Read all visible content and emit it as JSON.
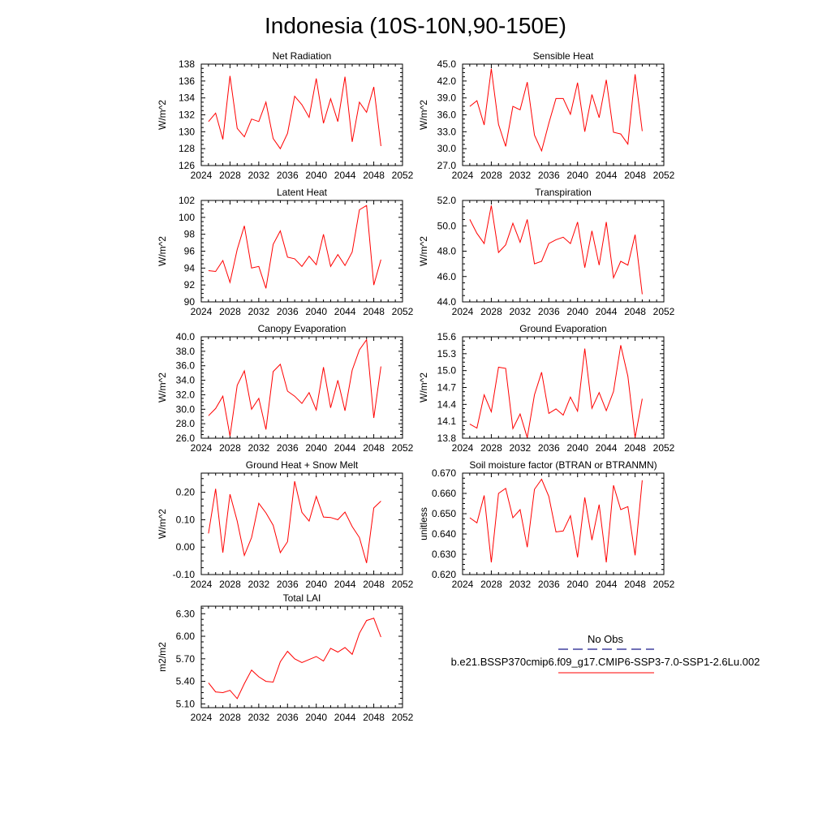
{
  "title": "Indonesia (10S-10N,90-150E)",
  "colors": {
    "model_line": "#ff0000",
    "obs_line": "#1a1a8c",
    "axis": "#000000"
  },
  "legend": {
    "obs_label": "No Obs",
    "model_label": "b.e21.BSSP370cmip6.f09_g17.CMIP6-SSP3-7.0-SSP1-2.6Lu.002"
  },
  "chart_data": [
    {
      "type": "line",
      "title": "Net Radiation",
      "ylabel": "W/m^2",
      "xlim": [
        2024,
        2052
      ],
      "x_ticks": [
        "2024",
        "2028",
        "2032",
        "2036",
        "2040",
        "2044",
        "2048",
        "2052"
      ],
      "ylim": [
        126,
        138
      ],
      "y_ticks": [
        "126",
        "128",
        "130",
        "132",
        "134",
        "136",
        "138"
      ],
      "x": [
        2025,
        2026,
        2027,
        2028,
        2029,
        2030,
        2031,
        2032,
        2033,
        2034,
        2035,
        2036,
        2037,
        2038,
        2039,
        2040,
        2041,
        2042,
        2043,
        2044,
        2045,
        2046,
        2047,
        2048,
        2049
      ],
      "values": [
        131.2,
        132.2,
        129.1,
        136.6,
        130.4,
        129.4,
        131.5,
        131.2,
        133.5,
        129.2,
        128.0,
        129.8,
        134.2,
        133.2,
        131.7,
        136.3,
        131.0,
        133.9,
        131.2,
        136.5,
        128.8,
        133.5,
        132.3,
        135.3,
        128.3
      ]
    },
    {
      "type": "line",
      "title": "Sensible Heat",
      "ylabel": "W/m^2",
      "xlim": [
        2024,
        2052
      ],
      "x_ticks": [
        "2024",
        "2028",
        "2032",
        "2036",
        "2040",
        "2044",
        "2048",
        "2052"
      ],
      "ylim": [
        27.0,
        45.0
      ],
      "y_ticks": [
        "27.0",
        "30.0",
        "33.0",
        "36.0",
        "39.0",
        "42.0",
        "45.0"
      ],
      "x": [
        2025,
        2026,
        2027,
        2028,
        2029,
        2030,
        2031,
        2032,
        2033,
        2034,
        2035,
        2036,
        2037,
        2038,
        2039,
        2040,
        2041,
        2042,
        2043,
        2044,
        2045,
        2046,
        2047,
        2048,
        2049
      ],
      "values": [
        37.5,
        38.5,
        34.2,
        44.2,
        34.3,
        30.4,
        37.5,
        36.9,
        41.8,
        32.4,
        29.6,
        34.5,
        38.9,
        38.9,
        36.1,
        41.7,
        33.0,
        39.6,
        35.5,
        42.2,
        32.9,
        32.6,
        30.8,
        43.2,
        33.1
      ]
    },
    {
      "type": "line",
      "title": "Latent Heat",
      "ylabel": "W/m^2",
      "xlim": [
        2024,
        2052
      ],
      "x_ticks": [
        "2024",
        "2028",
        "2032",
        "2036",
        "2040",
        "2044",
        "2048",
        "2052"
      ],
      "ylim": [
        90,
        102
      ],
      "y_ticks": [
        "90",
        "92",
        "94",
        "96",
        "98",
        "100",
        "102"
      ],
      "x": [
        2025,
        2026,
        2027,
        2028,
        2029,
        2030,
        2031,
        2032,
        2033,
        2034,
        2035,
        2036,
        2037,
        2038,
        2039,
        2040,
        2041,
        2042,
        2043,
        2044,
        2045,
        2046,
        2047,
        2048,
        2049
      ],
      "values": [
        93.7,
        93.6,
        94.9,
        92.3,
        96.2,
        99.0,
        94.0,
        94.2,
        91.6,
        96.8,
        98.4,
        95.3,
        95.1,
        94.2,
        95.4,
        94.4,
        98.0,
        94.2,
        95.6,
        94.3,
        95.9,
        100.9,
        101.4,
        92.0,
        95.0
      ]
    },
    {
      "type": "line",
      "title": "Transpiration",
      "ylabel": "W/m^2",
      "xlim": [
        2024,
        2052
      ],
      "x_ticks": [
        "2024",
        "2028",
        "2032",
        "2036",
        "2040",
        "2044",
        "2048",
        "2052"
      ],
      "ylim": [
        44.0,
        52.0
      ],
      "y_ticks": [
        "44.0",
        "46.0",
        "48.0",
        "50.0",
        "52.0"
      ],
      "x": [
        2025,
        2026,
        2027,
        2028,
        2029,
        2030,
        2031,
        2032,
        2033,
        2034,
        2035,
        2036,
        2037,
        2038,
        2039,
        2040,
        2041,
        2042,
        2043,
        2044,
        2045,
        2046,
        2047,
        2048,
        2049
      ],
      "values": [
        50.5,
        49.4,
        48.6,
        51.6,
        47.9,
        48.5,
        50.2,
        48.7,
        50.5,
        47.0,
        47.2,
        48.6,
        48.9,
        49.1,
        48.6,
        50.3,
        46.7,
        49.6,
        46.9,
        50.3,
        45.9,
        47.2,
        46.9,
        49.3,
        44.6
      ]
    },
    {
      "type": "line",
      "title": "Canopy Evaporation",
      "ylabel": "W/m^2",
      "xlim": [
        2024,
        2052
      ],
      "x_ticks": [
        "2024",
        "2028",
        "2032",
        "2036",
        "2040",
        "2044",
        "2048",
        "2052"
      ],
      "ylim": [
        26.0,
        40.0
      ],
      "y_ticks": [
        "26.0",
        "28.0",
        "30.0",
        "32.0",
        "34.0",
        "36.0",
        "38.0",
        "40.0"
      ],
      "x": [
        2025,
        2026,
        2027,
        2028,
        2029,
        2030,
        2031,
        2032,
        2033,
        2034,
        2035,
        2036,
        2037,
        2038,
        2039,
        2040,
        2041,
        2042,
        2043,
        2044,
        2045,
        2046,
        2047,
        2048,
        2049
      ],
      "values": [
        29.1,
        30.1,
        31.8,
        26.3,
        33.3,
        35.3,
        30.0,
        31.5,
        27.2,
        35.2,
        36.2,
        32.5,
        31.8,
        30.8,
        32.3,
        29.9,
        35.8,
        30.2,
        34.0,
        29.8,
        35.4,
        38.2,
        39.6,
        28.8,
        35.9
      ]
    },
    {
      "type": "line",
      "title": "Ground Evaporation",
      "ylabel": "W/m^2",
      "xlim": [
        2024,
        2052
      ],
      "x_ticks": [
        "2024",
        "2028",
        "2032",
        "2036",
        "2040",
        "2044",
        "2048",
        "2052"
      ],
      "ylim": [
        13.8,
        15.6
      ],
      "y_ticks": [
        "13.8",
        "14.1",
        "14.4",
        "14.7",
        "15.0",
        "15.3",
        "15.6"
      ],
      "x": [
        2025,
        2026,
        2027,
        2028,
        2029,
        2030,
        2031,
        2032,
        2033,
        2034,
        2035,
        2036,
        2037,
        2038,
        2039,
        2040,
        2041,
        2042,
        2043,
        2044,
        2045,
        2046,
        2047,
        2048,
        2049
      ],
      "values": [
        14.05,
        13.98,
        14.57,
        14.27,
        15.06,
        15.04,
        13.97,
        14.23,
        13.81,
        14.57,
        14.97,
        14.24,
        14.32,
        14.21,
        14.53,
        14.28,
        15.39,
        14.33,
        14.61,
        14.29,
        14.63,
        15.45,
        14.9,
        13.81,
        14.5
      ]
    },
    {
      "type": "line",
      "title": "Ground Heat + Snow Melt",
      "ylabel": "W/m^2",
      "xlim": [
        2024,
        2052
      ],
      "x_ticks": [
        "2024",
        "2028",
        "2032",
        "2036",
        "2040",
        "2044",
        "2048",
        "2052"
      ],
      "ylim": [
        -0.1,
        0.27
      ],
      "y_ticks": [
        "-0.10",
        "0.00",
        "0.10",
        "0.20"
      ],
      "x": [
        2025,
        2026,
        2027,
        2028,
        2029,
        2030,
        2031,
        2032,
        2033,
        2034,
        2035,
        2036,
        2037,
        2038,
        2039,
        2040,
        2041,
        2042,
        2043,
        2044,
        2045,
        2046,
        2047,
        2048,
        2049
      ],
      "values": [
        0.05,
        0.213,
        -0.02,
        0.193,
        0.095,
        -0.03,
        0.035,
        0.16,
        0.125,
        0.08,
        -0.02,
        0.02,
        0.24,
        0.127,
        0.095,
        0.185,
        0.11,
        0.108,
        0.1,
        0.128,
        0.075,
        0.035,
        -0.058,
        0.143,
        0.168
      ]
    },
    {
      "type": "line",
      "title": "Soil moisture factor (BTRAN or BTRANMN)",
      "ylabel": "unitless",
      "xlim": [
        2024,
        2052
      ],
      "x_ticks": [
        "2024",
        "2028",
        "2032",
        "2036",
        "2040",
        "2044",
        "2048",
        "2052"
      ],
      "ylim": [
        0.62,
        0.67
      ],
      "y_ticks": [
        "0.620",
        "0.630",
        "0.640",
        "0.650",
        "0.660",
        "0.670"
      ],
      "x": [
        2025,
        2026,
        2027,
        2028,
        2029,
        2030,
        2031,
        2032,
        2033,
        2034,
        2035,
        2036,
        2037,
        2038,
        2039,
        2040,
        2041,
        2042,
        2043,
        2044,
        2045,
        2046,
        2047,
        2048,
        2049
      ],
      "values": [
        0.648,
        0.6455,
        0.659,
        0.626,
        0.66,
        0.6625,
        0.648,
        0.652,
        0.6335,
        0.662,
        0.667,
        0.6585,
        0.641,
        0.6415,
        0.649,
        0.6285,
        0.658,
        0.637,
        0.6545,
        0.626,
        0.664,
        0.652,
        0.6535,
        0.6295,
        0.6665
      ]
    },
    {
      "type": "line",
      "title": "Total LAI",
      "ylabel": "m2/m2",
      "xlim": [
        2024,
        2052
      ],
      "x_ticks": [
        "2024",
        "2028",
        "2032",
        "2036",
        "2040",
        "2044",
        "2048",
        "2052"
      ],
      "ylim": [
        5.05,
        6.4
      ],
      "y_ticks": [
        "5.10",
        "5.40",
        "5.70",
        "6.00",
        "6.30"
      ],
      "x": [
        2025,
        2026,
        2027,
        2028,
        2029,
        2030,
        2031,
        2032,
        2033,
        2034,
        2035,
        2036,
        2037,
        2038,
        2039,
        2040,
        2041,
        2042,
        2043,
        2044,
        2045,
        2046,
        2047,
        2048,
        2049
      ],
      "values": [
        5.38,
        5.26,
        5.25,
        5.28,
        5.17,
        5.37,
        5.55,
        5.46,
        5.4,
        5.39,
        5.66,
        5.8,
        5.7,
        5.65,
        5.69,
        5.73,
        5.67,
        5.84,
        5.79,
        5.85,
        5.76,
        6.04,
        6.21,
        6.24,
        5.99
      ]
    }
  ]
}
